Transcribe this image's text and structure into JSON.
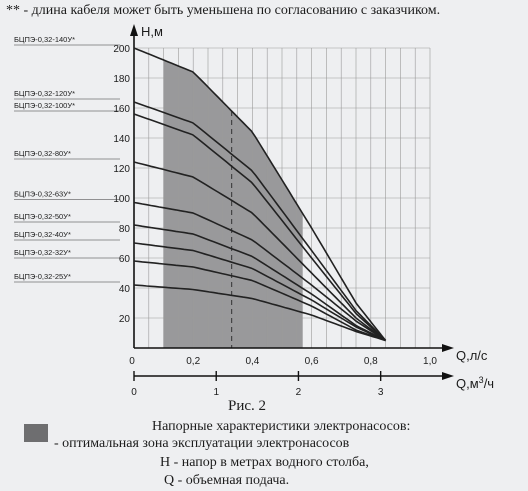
{
  "note": "** - длина кабеля может быть уменьшена по согласованию с заказчиком.",
  "chart_data": {
    "type": "line",
    "title": "",
    "ylabel": "H,м",
    "xlabel": "Q,л/с",
    "x2label_prefix": "Q,м",
    "x2label_sup": "3",
    "x2label_suffix": "/ч",
    "ylim": [
      0,
      200
    ],
    "xlim": [
      0,
      1.0
    ],
    "y_ticks": [
      "20",
      "40",
      "60",
      "80",
      "100",
      "120",
      "140",
      "160",
      "180",
      "200"
    ],
    "x_ticks": [
      "0",
      "0,2",
      "0,4",
      "0,6",
      "0,8",
      "1,0"
    ],
    "x2_ticks": [
      "0",
      "1",
      "2",
      "3"
    ],
    "grid": true,
    "optimal_zone": {
      "x_from": 0.1,
      "x_to": 0.57
    },
    "optimal_marker_x": 0.33,
    "series": [
      {
        "name": "БЦПЭ-0,32-140У*",
        "x": [
          0,
          0.2,
          0.4,
          0.6,
          0.75,
          0.85
        ],
        "y": [
          200,
          184,
          144,
          80,
          30,
          5
        ]
      },
      {
        "name": "БЦПЭ-0,32-120У*",
        "x": [
          0,
          0.2,
          0.4,
          0.6,
          0.75,
          0.85
        ],
        "y": [
          164,
          150,
          118,
          65,
          25,
          5
        ]
      },
      {
        "name": "БЦПЭ-0,32-100У*",
        "x": [
          0,
          0.2,
          0.4,
          0.6,
          0.75,
          0.85
        ],
        "y": [
          156,
          142,
          110,
          60,
          23,
          5
        ]
      },
      {
        "name": "БЦПЭ-0,32-80У*",
        "x": [
          0,
          0.2,
          0.4,
          0.6,
          0.75,
          0.85
        ],
        "y": [
          124,
          114,
          90,
          50,
          20,
          5
        ]
      },
      {
        "name": "БЦПЭ-0,32-63У*",
        "x": [
          0,
          0.2,
          0.4,
          0.6,
          0.75,
          0.85
        ],
        "y": [
          97,
          90,
          72,
          42,
          18,
          5
        ]
      },
      {
        "name": "БЦПЭ-0,32-50У*",
        "x": [
          0,
          0.2,
          0.4,
          0.6,
          0.75,
          0.85
        ],
        "y": [
          82,
          76,
          61,
          36,
          15,
          5
        ]
      },
      {
        "name": "БЦПЭ-0,32-40У*",
        "x": [
          0,
          0.2,
          0.4,
          0.6,
          0.75,
          0.85
        ],
        "y": [
          70,
          65,
          53,
          32,
          14,
          5
        ]
      },
      {
        "name": "БЦПЭ-0,32-32У*",
        "x": [
          0,
          0.2,
          0.4,
          0.6,
          0.75,
          0.85
        ],
        "y": [
          58,
          54,
          45,
          28,
          12,
          5
        ]
      },
      {
        "name": "БЦПЭ-0,32-25У*",
        "x": [
          0,
          0.2,
          0.4,
          0.6,
          0.75,
          0.85
        ],
        "y": [
          42,
          39,
          33,
          22,
          11,
          5
        ]
      }
    ],
    "label_offsets": [
      0,
      0,
      0,
      0,
      0,
      0,
      0,
      0,
      0
    ]
  },
  "caption": {
    "figure": "Рис. 2",
    "title": "Напорные характеристики электронасосов:",
    "legend_zone": "-  оптимальная зона эксплуатации электронасосов",
    "legend_h": "H - напор в метрах водного столба,",
    "legend_q": "Q - объемная подача."
  },
  "colors": {
    "zone": "#8a8a8c",
    "curve": "#222222",
    "grid": "#9a9a9a",
    "swatch": "#6e6e70"
  }
}
